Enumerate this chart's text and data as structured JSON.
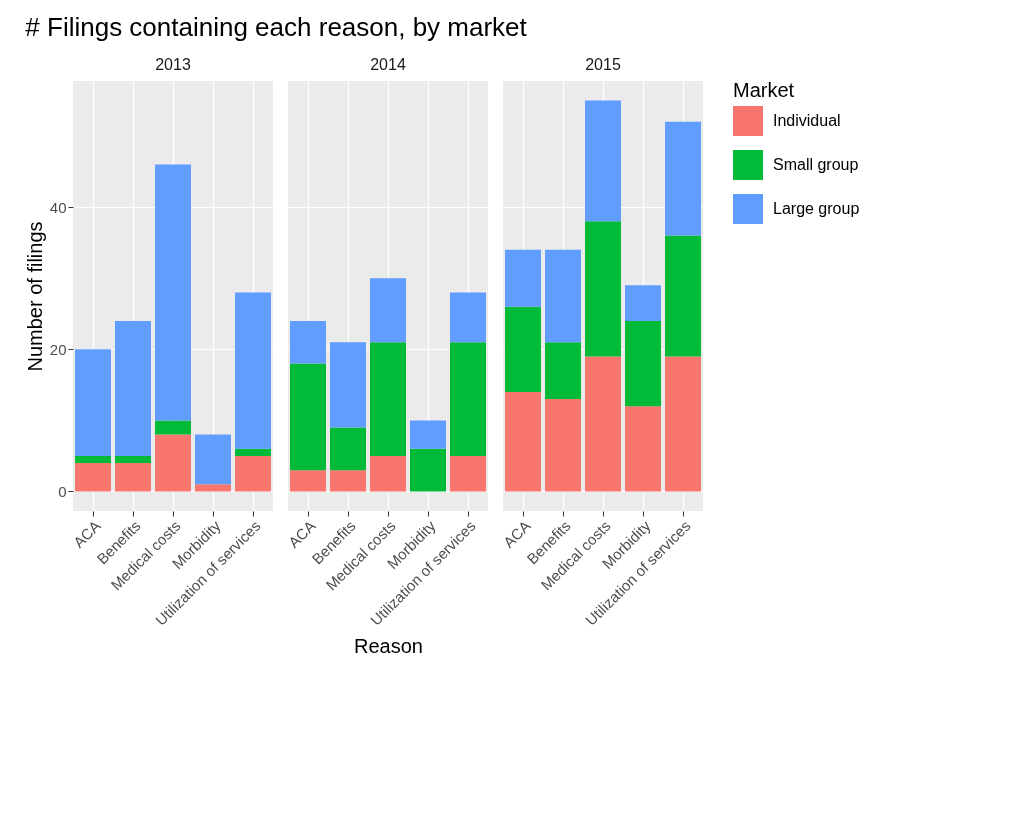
{
  "chart_data": [
    {
      "type": "bar",
      "title": "# Filings containing each reason, by market",
      "subtitle": "2013",
      "ylabel": "Number of filings",
      "categories": [
        "ACA",
        "Benefits",
        "Medical costs",
        "Morbidity",
        "Utilization of services"
      ],
      "stacked": true,
      "grid": true,
      "ylim": [
        -2.75,
        57.75
      ],
      "yticks": [
        0,
        20,
        40
      ],
      "series": [
        {
          "color": "#f8766d",
          "values": [
            4,
            4,
            8,
            1,
            5
          ]
        },
        {
          "color": "#00ba38",
          "values": [
            1,
            1,
            2,
            0,
            1
          ]
        },
        {
          "color": "#619cff",
          "values": [
            15,
            19,
            36,
            7,
            22
          ]
        }
      ]
    },
    {
      "type": "bar",
      "subtitle": "2014",
      "xlabel": "Reason",
      "categories": [
        "ACA",
        "Benefits",
        "Medical costs",
        "Morbidity",
        "Utilization of services"
      ],
      "stacked": true,
      "grid": true,
      "ylim": [
        -2.75,
        57.75
      ],
      "yticks": [
        0,
        20,
        40
      ],
      "tick_labels": "x",
      "series": [
        {
          "color": "#f8766d",
          "values": [
            3,
            3,
            5,
            0,
            5
          ]
        },
        {
          "color": "#00ba38",
          "values": [
            15,
            6,
            16,
            6,
            16
          ]
        },
        {
          "color": "#619cff",
          "values": [
            6,
            12,
            9,
            4,
            7
          ]
        }
      ]
    },
    {
      "type": "bar",
      "subtitle": "2015",
      "legend_title": "Market",
      "legend": "right",
      "categories": [
        "ACA",
        "Benefits",
        "Medical costs",
        "Morbidity",
        "Utilization of services"
      ],
      "stacked": true,
      "grid": true,
      "ylim": [
        -2.75,
        57.75
      ],
      "yticks": [
        0,
        20,
        40
      ],
      "tick_labels": "x",
      "series": [
        {
          "name": "Individual",
          "color": "#f8766d",
          "values": [
            14,
            13,
            19,
            12,
            19
          ]
        },
        {
          "name": "Small group",
          "color": "#00ba38",
          "values": [
            12,
            8,
            19,
            12,
            17
          ]
        },
        {
          "name": "Large group",
          "color": "#619cff",
          "values": [
            8,
            13,
            17,
            5,
            16
          ]
        }
      ]
    }
  ]
}
